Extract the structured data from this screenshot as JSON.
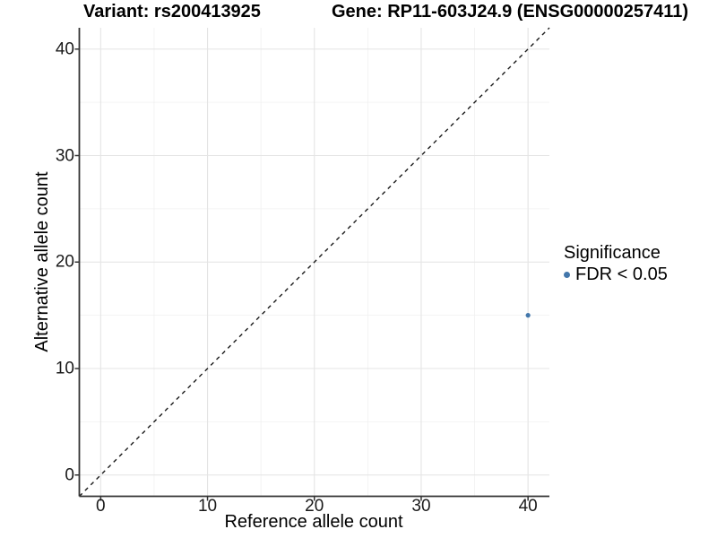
{
  "title": {
    "variant": "Variant: rs200413925",
    "gene": "Gene: RP11-603J24.9 (ENSG00000257411)"
  },
  "axes": {
    "x": {
      "label": "Reference allele count",
      "ticks": [
        0,
        10,
        20,
        30,
        40
      ],
      "minor_ticks": [
        5,
        15,
        25,
        35
      ]
    },
    "y": {
      "label": "Alternative allele count",
      "ticks": [
        0,
        10,
        20,
        30,
        40
      ],
      "minor_ticks": [
        5,
        15,
        25,
        35
      ]
    }
  },
  "legend": {
    "title": "Significance",
    "items": [
      {
        "label": "FDR < 0.05",
        "color": "#4377AB"
      }
    ]
  },
  "chart_data": {
    "type": "scatter",
    "title": "Variant: rs200413925    Gene: RP11-603J24.9 (ENSG00000257411)",
    "xlabel": "Reference allele count",
    "ylabel": "Alternative allele count",
    "xlim": [
      -2,
      42
    ],
    "ylim": [
      -2,
      42
    ],
    "xticks": [
      0,
      10,
      20,
      30,
      40
    ],
    "yticks": [
      0,
      10,
      20,
      30,
      40
    ],
    "grid": true,
    "legend_position": "right",
    "series": [
      {
        "name": "FDR < 0.05",
        "color": "#4377AB",
        "points": [
          {
            "x": 40,
            "y": 15
          }
        ]
      }
    ],
    "reference_line": {
      "type": "identity",
      "style": "dashed",
      "from": [
        -2,
        -2
      ],
      "to": [
        42,
        42
      ],
      "color": "#1a1a1a"
    }
  },
  "colors": {
    "background": "#ffffff",
    "grid_major": "#e4e4e4",
    "grid_minor": "#f0f0f0",
    "axis_line": "#333333",
    "tick_mark": "#333333",
    "point": "#4377AB",
    "dashed_line": "#1a1a1a"
  }
}
